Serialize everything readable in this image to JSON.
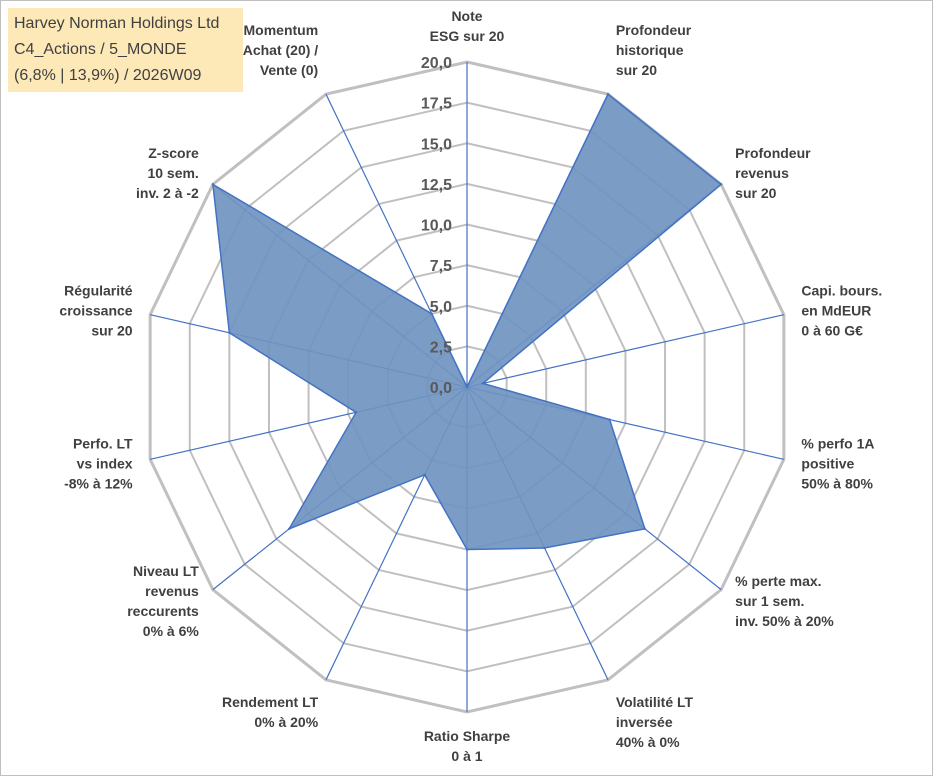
{
  "title_box": {
    "company": "Harvey Norman Holdings Ltd",
    "category": "C4_Actions / 5_MONDE",
    "stats": "(6,8% | 13,9%) / 2026W09"
  },
  "colors": {
    "fill": "#7094c0",
    "stroke": "#4472c4",
    "grid": "#c0c0c0",
    "spoke": "#4472c4",
    "title_bg": "#fde9b8"
  },
  "chart_data": {
    "type": "radar",
    "title": "Harvey Norman Holdings Ltd",
    "rlim": [
      0,
      20
    ],
    "ticks": [
      "0,0",
      "2,5",
      "5,0",
      "7,5",
      "10,0",
      "12,5",
      "15,0",
      "17,5",
      "20,0"
    ],
    "grid": true,
    "axes": [
      {
        "label": [
          "Note",
          "ESG sur 20"
        ],
        "value": 0
      },
      {
        "label": [
          "Profondeur",
          "historique",
          "sur 20"
        ],
        "value": 20
      },
      {
        "label": [
          "Profondeur",
          "revenus",
          "sur 20"
        ],
        "value": 20
      },
      {
        "label": [
          "Capi. bours.",
          "en MdEUR",
          "0 à 60 G€"
        ],
        "value": 1
      },
      {
        "label": [
          "% perfo 1A",
          "positive",
          "50% à 80%"
        ],
        "value": 9
      },
      {
        "label": [
          "% perte max.",
          "sur 1 sem.",
          "inv. 50% à 20%"
        ],
        "value": 14
      },
      {
        "label": [
          "Volatilité LT",
          "inversée",
          "40% à 0%"
        ],
        "value": 11
      },
      {
        "label": [
          "Ratio Sharpe",
          "0 à 1"
        ],
        "value": 10
      },
      {
        "label": [
          "Rendement LT",
          "0% à 20%"
        ],
        "value": 6
      },
      {
        "label": [
          "Niveau LT",
          "revenus",
          "reccurents",
          "0% à 6%"
        ],
        "value": 14
      },
      {
        "label": [
          "Perfo. LT",
          "vs index",
          "-8% à 12%"
        ],
        "value": 7
      },
      {
        "label": [
          "Régularité",
          "croissance",
          "sur 20"
        ],
        "value": 15
      },
      {
        "label": [
          "Z-score",
          "10 sem.",
          "inv. 2 à -2"
        ],
        "value": 20
      },
      {
        "label": [
          "Momentum",
          "Achat (20) /",
          "Vente (0)"
        ],
        "value": 5
      }
    ]
  }
}
